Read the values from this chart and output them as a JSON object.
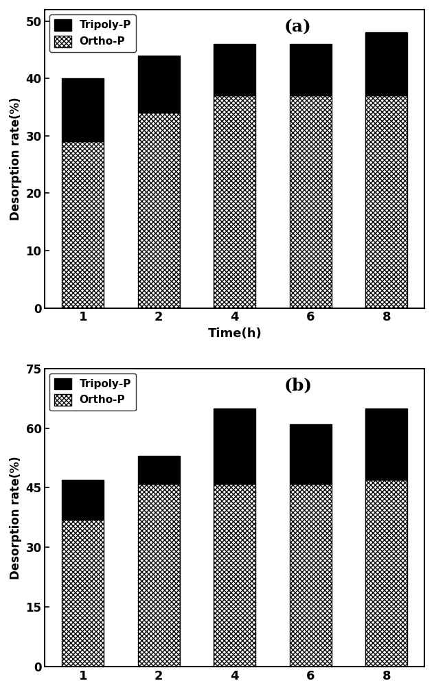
{
  "chart_a": {
    "time": [
      1,
      2,
      4,
      6,
      8
    ],
    "ortho_p": [
      29,
      34,
      37,
      37,
      37
    ],
    "tripoly_p": [
      11,
      10,
      9,
      9,
      11
    ],
    "ylim": [
      0,
      52
    ],
    "yticks": [
      0,
      10,
      20,
      30,
      40,
      50
    ],
    "ylabel": "Desorption rate(%)",
    "xlabel": "Time(h)",
    "label": "(a)"
  },
  "chart_b": {
    "time": [
      1,
      2,
      4,
      6,
      8
    ],
    "ortho_p": [
      37,
      46,
      46,
      46,
      47
    ],
    "tripoly_p": [
      10,
      7,
      19,
      15,
      18
    ],
    "ylim": [
      0,
      75
    ],
    "yticks": [
      0,
      15,
      30,
      45,
      60,
      75
    ],
    "ylabel": "Desorption rate(%)",
    "xlabel": "",
    "label": "(b)"
  },
  "tripoly_color": "#000000",
  "ortho_hatch": "xxxxx",
  "ortho_facecolor": "#ffffff",
  "ortho_edgecolor": "#000000",
  "bar_width": 0.55,
  "bar_edgecolor": "#000000",
  "legend_tripoly_label": "Tripoly-P",
  "legend_ortho_label": "Ortho-P",
  "ax_facecolor": "#ffffff",
  "fig_facecolor": "#ffffff"
}
